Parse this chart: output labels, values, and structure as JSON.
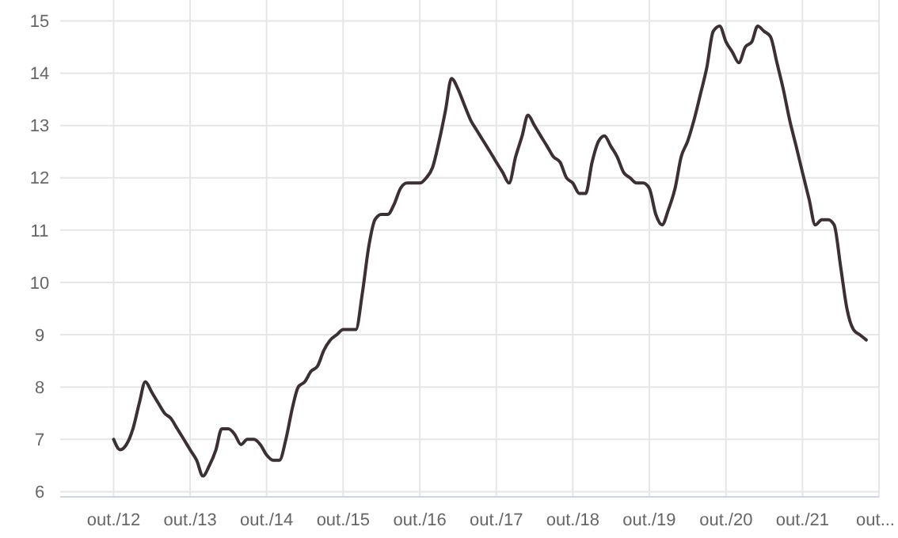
{
  "chart_data": {
    "type": "line",
    "grid": true,
    "marker": "none",
    "line_style": "solid",
    "xlim": [
      "2012-01-20",
      "2022-10"
    ],
    "ylim": [
      5.9,
      15.4
    ],
    "yticks": [
      6,
      7,
      8,
      9,
      10,
      11,
      12,
      13,
      14,
      15
    ],
    "xticks": [
      {
        "value": "2012-10",
        "label": "out./12"
      },
      {
        "value": "2013-10",
        "label": "out./13"
      },
      {
        "value": "2014-10",
        "label": "out./14"
      },
      {
        "value": "2015-10",
        "label": "out./15"
      },
      {
        "value": "2016-10",
        "label": "out./16"
      },
      {
        "value": "2017-10",
        "label": "out./17"
      },
      {
        "value": "2018-10",
        "label": "out./18"
      },
      {
        "value": "2019-10",
        "label": "out./19"
      },
      {
        "value": "2020-10",
        "label": "out./20"
      },
      {
        "value": "2021-10",
        "label": "out./21"
      },
      {
        "value": "2022-10",
        "label": "out..."
      }
    ],
    "x": [
      "2012-10",
      "2012-11",
      "2012-12",
      "2013-01",
      "2013-02",
      "2013-03",
      "2013-04",
      "2013-05",
      "2013-06",
      "2013-07",
      "2013-08",
      "2013-09",
      "2013-10",
      "2013-11",
      "2013-12",
      "2014-01",
      "2014-02",
      "2014-03",
      "2014-04",
      "2014-05",
      "2014-06",
      "2014-07",
      "2014-08",
      "2014-09",
      "2014-10",
      "2014-11",
      "2014-12",
      "2015-01",
      "2015-02",
      "2015-03",
      "2015-04",
      "2015-05",
      "2015-06",
      "2015-07",
      "2015-08",
      "2015-09",
      "2015-10",
      "2015-11",
      "2015-12",
      "2016-01",
      "2016-02",
      "2016-03",
      "2016-04",
      "2016-05",
      "2016-06",
      "2016-07",
      "2016-08",
      "2016-09",
      "2016-10",
      "2016-11",
      "2016-12",
      "2017-01",
      "2017-02",
      "2017-03",
      "2017-04",
      "2017-05",
      "2017-06",
      "2017-07",
      "2017-08",
      "2017-09",
      "2017-10",
      "2017-11",
      "2017-12",
      "2018-01",
      "2018-02",
      "2018-03",
      "2018-04",
      "2018-05",
      "2018-06",
      "2018-07",
      "2018-08",
      "2018-09",
      "2018-10",
      "2018-11",
      "2018-12",
      "2019-01",
      "2019-02",
      "2019-03",
      "2019-04",
      "2019-05",
      "2019-06",
      "2019-07",
      "2019-08",
      "2019-09",
      "2019-10",
      "2019-11",
      "2019-12",
      "2020-01",
      "2020-02",
      "2020-03",
      "2020-04",
      "2020-05",
      "2020-06",
      "2020-07",
      "2020-08",
      "2020-09",
      "2020-10",
      "2020-11",
      "2020-12",
      "2021-01",
      "2021-02",
      "2021-03",
      "2021-04",
      "2021-05",
      "2021-06",
      "2021-07",
      "2021-08",
      "2021-09",
      "2021-10",
      "2021-11",
      "2021-12",
      "2022-01",
      "2022-02",
      "2022-03",
      "2022-04",
      "2022-05",
      "2022-06",
      "2022-07",
      "2022-08"
    ],
    "series": [
      {
        "color": "#3d3035",
        "values": [
          7.0,
          6.8,
          6.9,
          7.2,
          7.7,
          8.1,
          7.9,
          7.7,
          7.5,
          7.4,
          7.2,
          7.0,
          6.8,
          6.6,
          6.3,
          6.5,
          6.8,
          7.2,
          7.2,
          7.1,
          6.9,
          7.0,
          7.0,
          6.9,
          6.7,
          6.6,
          6.6,
          7.0,
          7.6,
          8.0,
          8.1,
          8.3,
          8.4,
          8.7,
          8.9,
          9.0,
          9.1,
          9.1,
          9.1,
          9.8,
          10.7,
          11.2,
          11.3,
          11.3,
          11.5,
          11.8,
          11.9,
          11.9,
          11.9,
          12.0,
          12.2,
          12.7,
          13.3,
          13.9,
          13.7,
          13.4,
          13.1,
          12.9,
          12.7,
          12.5,
          12.3,
          12.1,
          11.9,
          12.4,
          12.8,
          13.2,
          13.0,
          12.8,
          12.6,
          12.4,
          12.3,
          12.0,
          11.9,
          11.7,
          11.7,
          12.3,
          12.7,
          12.8,
          12.6,
          12.4,
          12.1,
          12.0,
          11.9,
          11.9,
          11.8,
          11.3,
          11.1,
          11.4,
          11.8,
          12.4,
          12.7,
          13.1,
          13.6,
          14.1,
          14.8,
          14.9,
          14.6,
          14.4,
          14.2,
          14.5,
          14.6,
          14.9,
          14.8,
          14.7,
          14.2,
          13.7,
          13.1,
          12.6,
          12.1,
          11.6,
          11.1,
          11.2,
          11.2,
          11.1,
          10.3,
          9.5,
          9.1,
          9.0,
          8.9
        ]
      }
    ]
  }
}
